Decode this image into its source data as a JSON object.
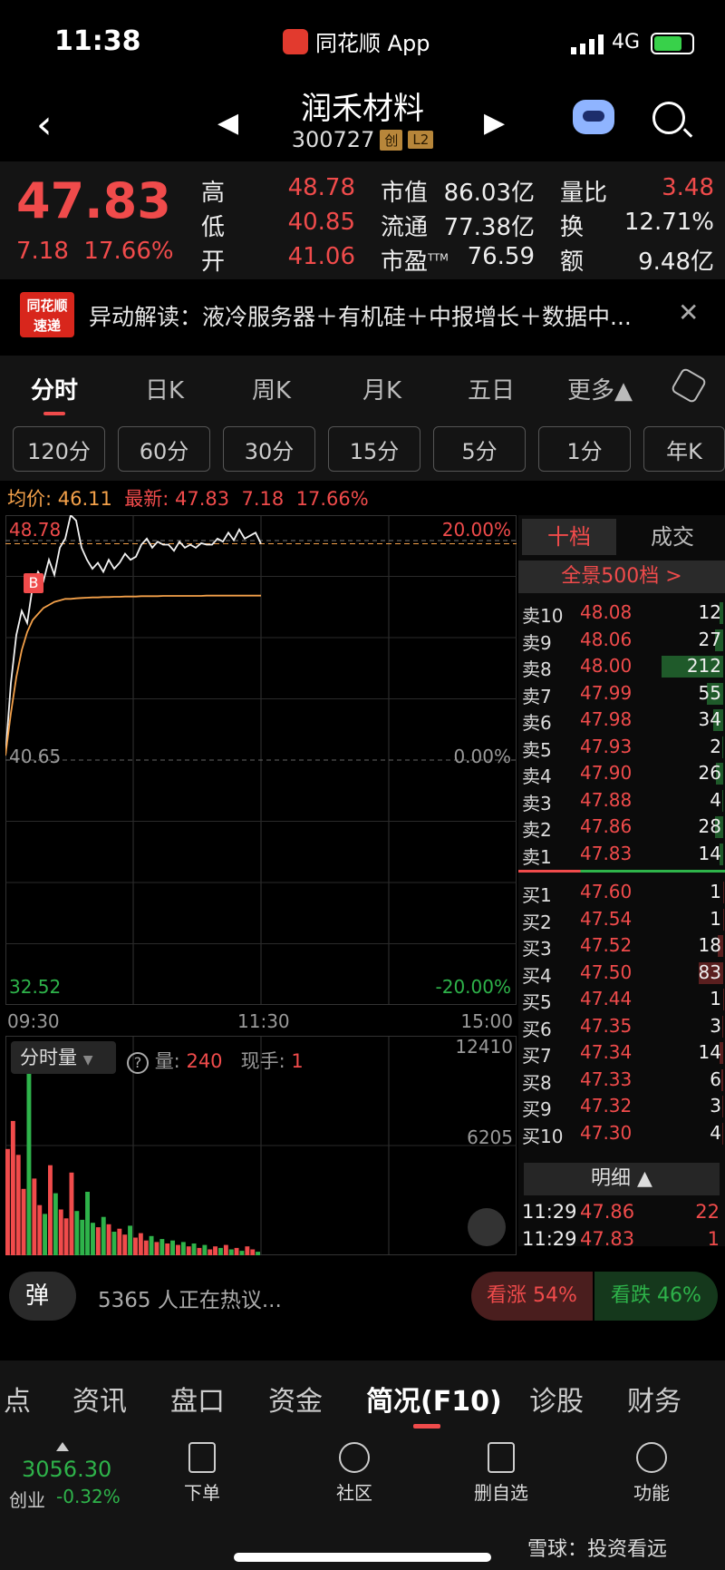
{
  "status": {
    "time": "11:38",
    "app": "同花顺 App",
    "network": "4G"
  },
  "nav": {
    "name": "润禾材料",
    "code": "300727",
    "tag1": "创",
    "tag2": "L2"
  },
  "quote": {
    "last": "47.83",
    "change": "7.18",
    "pct": "17.66%",
    "high_label": "高",
    "high": "48.78",
    "low_label": "低",
    "low": "40.85",
    "open_label": "开",
    "open": "41.06",
    "mcap_label": "市值",
    "mcap": "86.03亿",
    "float_label": "流通",
    "float": "77.38亿",
    "pe_label": "市盈",
    "pe_sup": "TTM",
    "pe": "76.59",
    "vr_label": "量比",
    "vr": "3.48",
    "turn_label": "换",
    "turn": "12.71%",
    "amt_label": "额",
    "amt": "9.48亿"
  },
  "banner": {
    "logo_top": "同花顺",
    "logo_bottom": "速递",
    "text": "异动解读：液冷服务器＋有机硅＋中报增长＋数据中..."
  },
  "tabs": [
    "分时",
    "日K",
    "周K",
    "月K",
    "五日",
    "更多▲"
  ],
  "periods": [
    "120分",
    "60分",
    "30分",
    "15分",
    "5分",
    "1分",
    "年K"
  ],
  "avg": {
    "label": "均价:",
    "value": "46.11",
    "latest_label": "最新:",
    "latest": "47.83",
    "chg": "7.18",
    "pct": "17.66%"
  },
  "axis": {
    "top": "48.78",
    "mid": "40.65",
    "bot": "32.52",
    "top_pct": "20.00%",
    "mid_pct": "0.00%",
    "bot_pct": "-20.00%",
    "t0": "09:30",
    "t1": "11:30",
    "t2": "15:00",
    "vol_top": "12410",
    "vol_mid": "6205"
  },
  "marker": "B",
  "book": {
    "tab1": "十档",
    "tab2": "成交",
    "panorama": "全景500档 >",
    "asks": [
      {
        "l": "卖10",
        "p": "48.08",
        "v": "12"
      },
      {
        "l": "卖9",
        "p": "48.06",
        "v": "27"
      },
      {
        "l": "卖8",
        "p": "48.00",
        "v": "212"
      },
      {
        "l": "卖7",
        "p": "47.99",
        "v": "55"
      },
      {
        "l": "卖6",
        "p": "47.98",
        "v": "34"
      },
      {
        "l": "卖5",
        "p": "47.93",
        "v": "2"
      },
      {
        "l": "卖4",
        "p": "47.90",
        "v": "26"
      },
      {
        "l": "卖3",
        "p": "47.88",
        "v": "4"
      },
      {
        "l": "卖2",
        "p": "47.86",
        "v": "28"
      },
      {
        "l": "卖1",
        "p": "47.83",
        "v": "14"
      }
    ],
    "bids": [
      {
        "l": "买1",
        "p": "47.60",
        "v": "1"
      },
      {
        "l": "买2",
        "p": "47.54",
        "v": "1"
      },
      {
        "l": "买3",
        "p": "47.52",
        "v": "18"
      },
      {
        "l": "买4",
        "p": "47.50",
        "v": "83"
      },
      {
        "l": "买5",
        "p": "47.44",
        "v": "1"
      },
      {
        "l": "买6",
        "p": "47.35",
        "v": "3"
      },
      {
        "l": "买7",
        "p": "47.34",
        "v": "14"
      },
      {
        "l": "买8",
        "p": "47.33",
        "v": "6"
      },
      {
        "l": "买9",
        "p": "47.32",
        "v": "3"
      },
      {
        "l": "买10",
        "p": "47.30",
        "v": "4"
      }
    ],
    "detail_label": "明细 ▲",
    "details": [
      {
        "t": "11:29",
        "p": "47.86",
        "v": "22"
      },
      {
        "t": "11:29",
        "p": "47.83",
        "v": "1"
      }
    ]
  },
  "volume": {
    "mode": "分时量",
    "qty_label": "量:",
    "qty": "240",
    "hand_label": "现手:",
    "hand": "1"
  },
  "discuss": {
    "danmu": "弹",
    "text": "5365 人正在热议...",
    "bull": "看涨 54%",
    "bear": "看跌 46%"
  },
  "sections": [
    "点",
    "资讯",
    "盘口",
    "资金",
    "简况(F10)",
    "诊股",
    "财务"
  ],
  "toolbar": {
    "index_value": "3056.30",
    "index_name": "创业",
    "index_chg": "-0.32%",
    "order": "下单",
    "community": "社区",
    "remove_watch": "删自选",
    "functions": "功能"
  },
  "watermark": "雪球：投资看远",
  "colors": {
    "up": "#f04b4b",
    "down": "#2eb34a",
    "avg": "#f4a14a"
  },
  "price_series": [
    40.8,
    43.2,
    44.8,
    45.6,
    45.2,
    46.4,
    46.9,
    46.6,
    47.3,
    46.8,
    47.7,
    48.0,
    48.78,
    48.6,
    47.7,
    47.3,
    47.0,
    47.2,
    46.9,
    47.3,
    47.0,
    47.2,
    47.5,
    47.3,
    47.4,
    47.8,
    48.0,
    47.7,
    47.9,
    47.8,
    47.8,
    47.6,
    47.9,
    47.7,
    47.8,
    47.7,
    47.85,
    47.8,
    47.8,
    48.0,
    47.9,
    48.2,
    47.95,
    48.3,
    48.0,
    48.1,
    48.2,
    47.83
  ],
  "avg_series": [
    40.8,
    42.2,
    43.4,
    44.3,
    44.9,
    45.3,
    45.5,
    45.7,
    45.8,
    45.9,
    45.95,
    46.0,
    46.0,
    46.02,
    46.03,
    46.04,
    46.05,
    46.05,
    46.06,
    46.06,
    46.07,
    46.07,
    46.08,
    46.08,
    46.08,
    46.09,
    46.09,
    46.09,
    46.09,
    46.1,
    46.1,
    46.1,
    46.1,
    46.1,
    46.1,
    46.1,
    46.1,
    46.11,
    46.11,
    46.11,
    46.11,
    46.11,
    46.11,
    46.11,
    46.11,
    46.11,
    46.11,
    46.11
  ],
  "volume_series": [
    7200,
    9100,
    6800,
    4500,
    12410,
    5200,
    3400,
    2800,
    6100,
    4200,
    3100,
    2500,
    5600,
    3000,
    2400,
    4300,
    2200,
    1900,
    2600,
    2100,
    1600,
    1800,
    1400,
    2000,
    1200,
    1500,
    1000,
    1300,
    900,
    1100,
    800,
    1000,
    700,
    900,
    600,
    800,
    500,
    700,
    400,
    600,
    500,
    700,
    400,
    500,
    300,
    600,
    400,
    240
  ]
}
